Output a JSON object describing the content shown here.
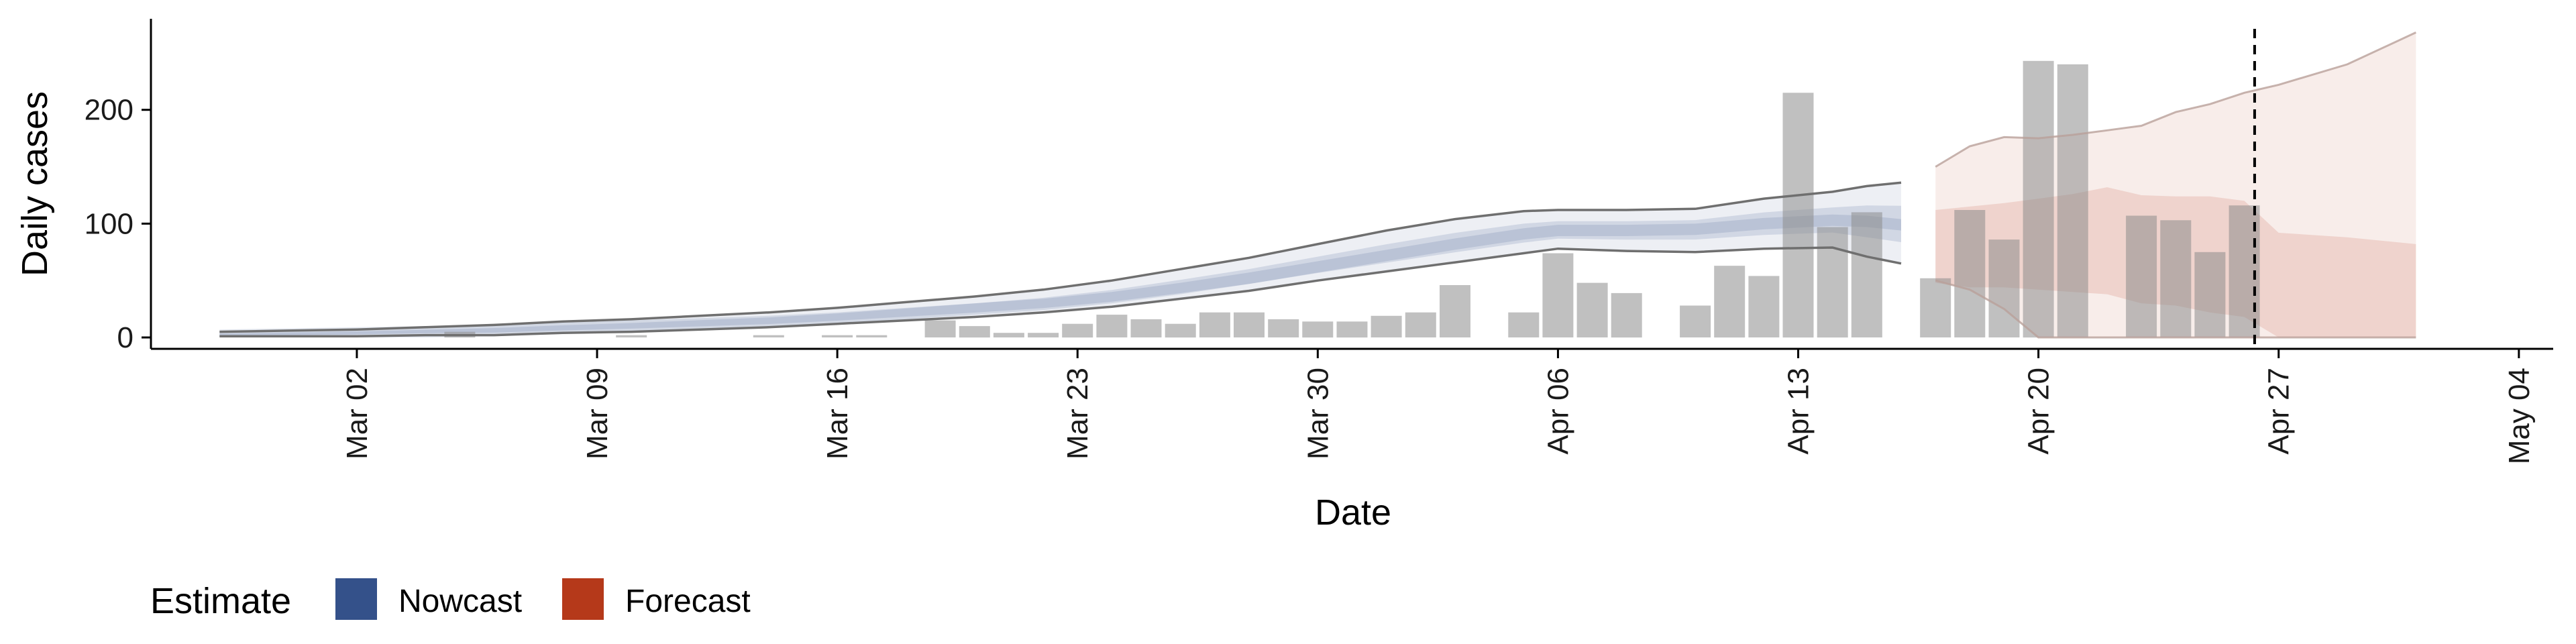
{
  "chart_data": {
    "type": "bar",
    "title": "",
    "xlabel": "Date",
    "ylabel": "Daily cases",
    "ylim": [
      -10,
      280
    ],
    "yticks": [
      0,
      100,
      200
    ],
    "x_tick_labels": [
      "Mar 02",
      "Mar 09",
      "Mar 16",
      "Mar 23",
      "Mar 30",
      "Apr 06",
      "Apr 13",
      "Apr 20",
      "Apr 27",
      "May 04"
    ],
    "x_ticks_day": [
      2,
      9,
      16,
      23,
      30,
      37,
      44,
      51,
      58,
      65
    ],
    "x_range_day": [
      -4,
      66
    ],
    "x_day_note": "day index: 1 = Mar 01",
    "forecast_date_day": 57.3,
    "reported_cases": {
      "days": [
        5,
        10,
        14,
        16,
        17,
        19,
        20,
        21,
        22,
        23,
        24,
        25,
        26,
        27,
        28,
        29,
        30,
        31,
        32,
        33,
        34,
        36,
        37,
        38,
        39,
        41,
        42,
        43,
        44,
        45,
        46,
        48,
        49,
        50,
        51,
        52,
        54,
        55,
        56,
        57
      ],
      "values": [
        5,
        2,
        2,
        2,
        2,
        15,
        10,
        4,
        4,
        12,
        20,
        16,
        12,
        22,
        22,
        16,
        14,
        14,
        19,
        22,
        46,
        22,
        74,
        48,
        39,
        28,
        63,
        54,
        215,
        97,
        110,
        52,
        112,
        86,
        243,
        240,
        107,
        103,
        75,
        116
      ]
    },
    "series": [
      {
        "name": "Nowcast",
        "color": "#34518a",
        "days": [
          -2,
          0,
          2,
          4,
          6,
          8,
          10,
          12,
          14,
          16,
          18,
          20,
          22,
          24,
          26,
          28,
          30,
          32,
          34,
          36,
          37,
          39,
          41,
          43,
          45,
          46,
          47
        ],
        "median": [
          2,
          3,
          4,
          5,
          6,
          8,
          10,
          12,
          14,
          17,
          21,
          25,
          29,
          35,
          43,
          52,
          62,
          72,
          82,
          91,
          94,
          94,
          95,
          100,
          103,
          102,
          99
        ],
        "upper_90": [
          5,
          6,
          7,
          9,
          11,
          14,
          16,
          19,
          22,
          26,
          31,
          36,
          42,
          50,
          60,
          70,
          82,
          94,
          104,
          111,
          112,
          112,
          113,
          122,
          128,
          133,
          136
        ],
        "lower_90": [
          1,
          1,
          1,
          2,
          2,
          4,
          5,
          7,
          9,
          12,
          15,
          18,
          22,
          27,
          34,
          41,
          50,
          58,
          66,
          74,
          78,
          76,
          75,
          78,
          79,
          71,
          65
        ]
      },
      {
        "name": "Forecast",
        "color": "#b5391a",
        "days": [
          48,
          49,
          50,
          51,
          52,
          53,
          54,
          55,
          56,
          57,
          58,
          60,
          62
        ],
        "median": [
          52,
          58,
          62,
          64,
          66,
          68,
          70,
          67,
          66,
          68,
          65,
          62,
          58
        ],
        "upper_90": [
          150,
          168,
          176,
          175,
          178,
          182,
          186,
          198,
          205,
          215,
          222,
          240,
          268
        ],
        "lower_90": [
          50,
          42,
          25,
          0,
          0,
          0,
          0,
          0,
          0,
          0,
          0,
          0,
          0
        ],
        "upper_50": [
          112,
          115,
          118,
          122,
          126,
          132,
          125,
          124,
          124,
          120,
          92,
          88,
          82
        ],
        "lower_50": [
          48,
          44,
          44,
          42,
          40,
          38,
          30,
          28,
          22,
          18,
          0,
          0,
          0
        ]
      }
    ],
    "legend": {
      "title": "Estimate",
      "position": "bottom-left",
      "items": [
        {
          "label": "Nowcast",
          "color": "#34518a"
        },
        {
          "label": "Forecast",
          "color": "#b5391a"
        }
      ]
    }
  }
}
